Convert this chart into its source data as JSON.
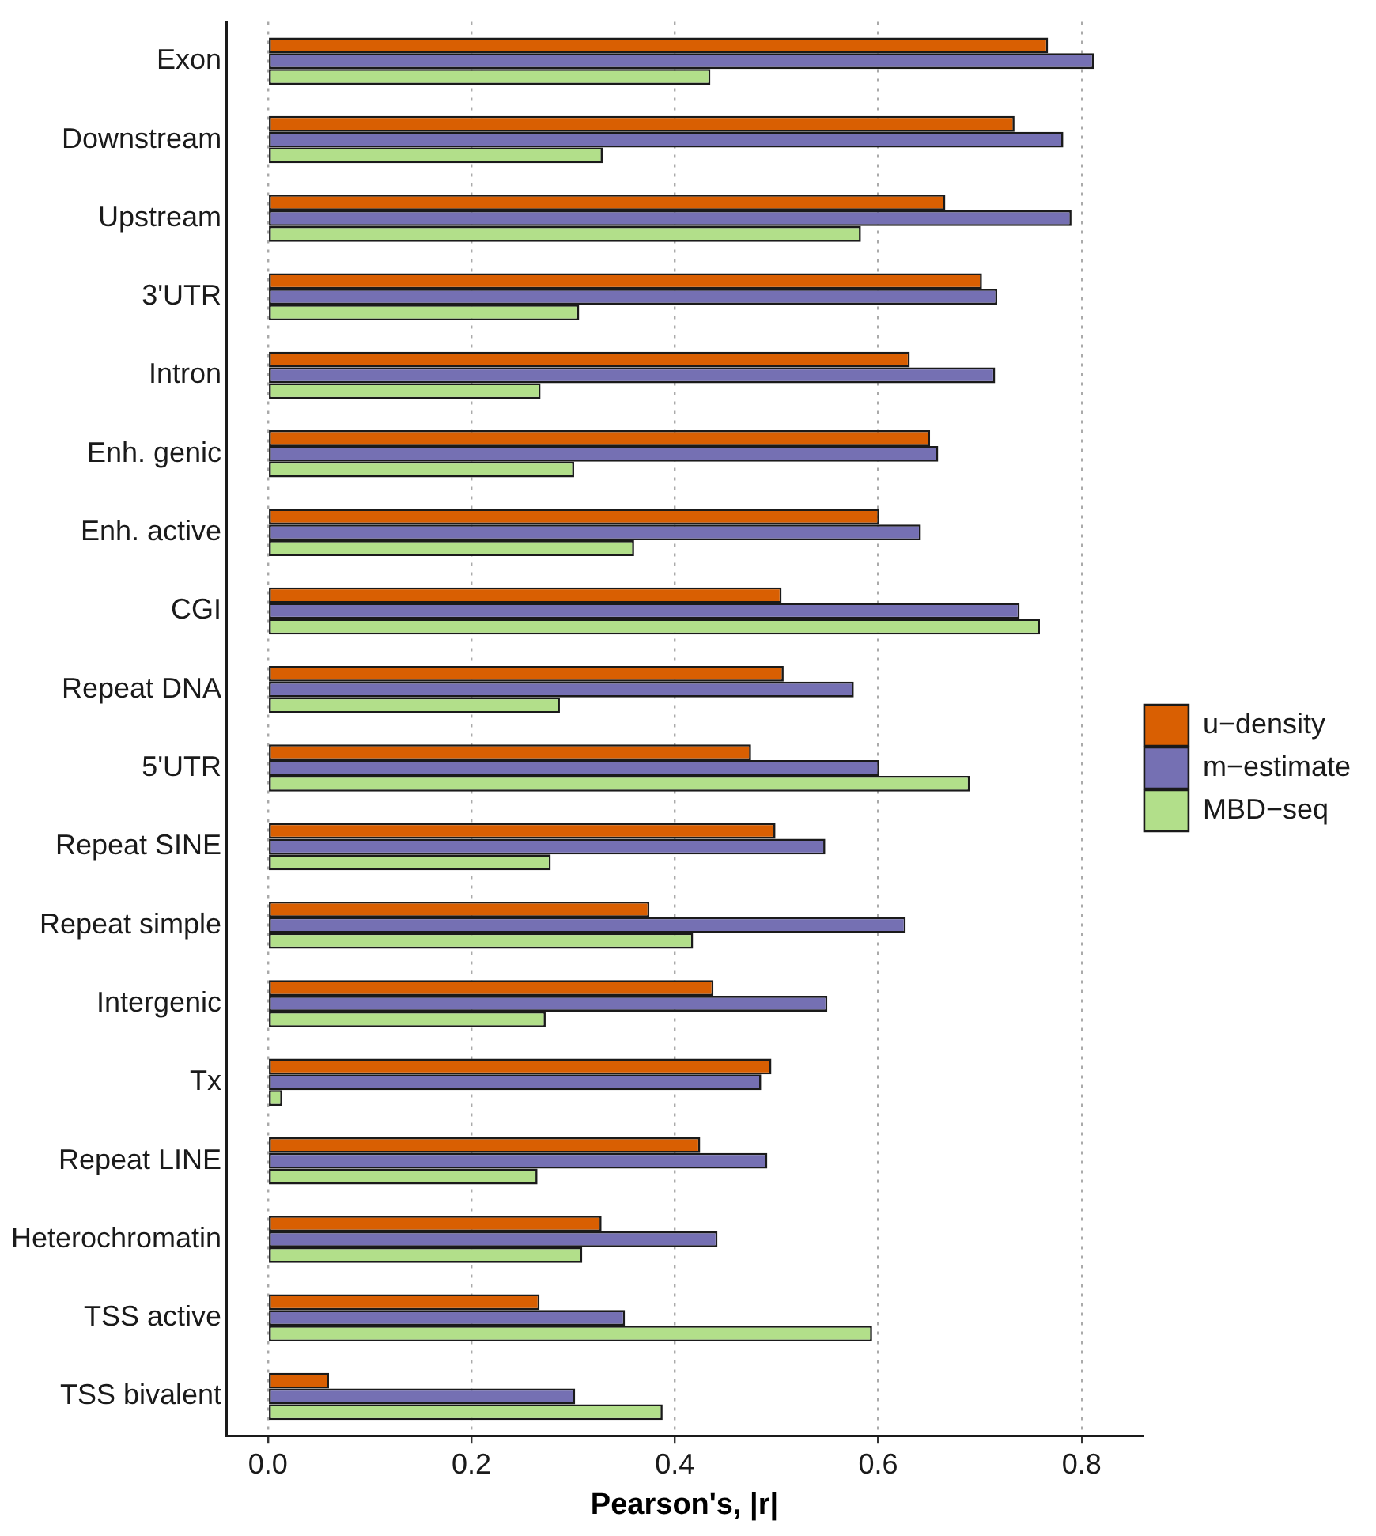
{
  "chart_data": {
    "type": "bar",
    "orientation": "horizontal",
    "xlabel": "Pearson's, |r|",
    "categories": [
      "Exon",
      "Downstream",
      "Upstream",
      "3'UTR",
      "Intron",
      "Enh. genic",
      "Enh. active",
      "CGI",
      "Repeat DNA",
      "5'UTR",
      "Repeat SINE",
      "Repeat simple",
      "Intergenic",
      "Tx",
      "Repeat LINE",
      "Heterochromatin",
      "TSS active",
      "TSS bivalent"
    ],
    "series": [
      {
        "name": "u−density",
        "color": "#d95f02",
        "values": [
          0.767,
          0.734,
          0.666,
          0.702,
          0.631,
          0.651,
          0.601,
          0.505,
          0.507,
          0.475,
          0.499,
          0.375,
          0.438,
          0.495,
          0.425,
          0.328,
          0.267,
          0.06
        ]
      },
      {
        "name": "m−estimate",
        "color": "#7570b3",
        "values": [
          0.812,
          0.782,
          0.79,
          0.717,
          0.715,
          0.659,
          0.642,
          0.739,
          0.576,
          0.601,
          0.548,
          0.627,
          0.55,
          0.485,
          0.491,
          0.442,
          0.351,
          0.302
        ]
      },
      {
        "name": "MBD−seq",
        "color": "#b2df8a",
        "values": [
          0.435,
          0.329,
          0.583,
          0.306,
          0.268,
          0.301,
          0.36,
          0.759,
          0.287,
          0.69,
          0.278,
          0.418,
          0.273,
          0.014,
          0.265,
          0.309,
          0.594,
          0.388
        ]
      }
    ],
    "xlim": [
      -0.041,
      0.86
    ],
    "xticks": [
      {
        "value": 0,
        "label": "0.0"
      },
      {
        "value": 0.2,
        "label": "0.2"
      },
      {
        "value": 0.4,
        "label": "0.4"
      },
      {
        "value": 0.6,
        "label": "0.6"
      },
      {
        "value": 0.8,
        "label": "0.8"
      }
    ],
    "grid": "x",
    "legend": "right"
  }
}
